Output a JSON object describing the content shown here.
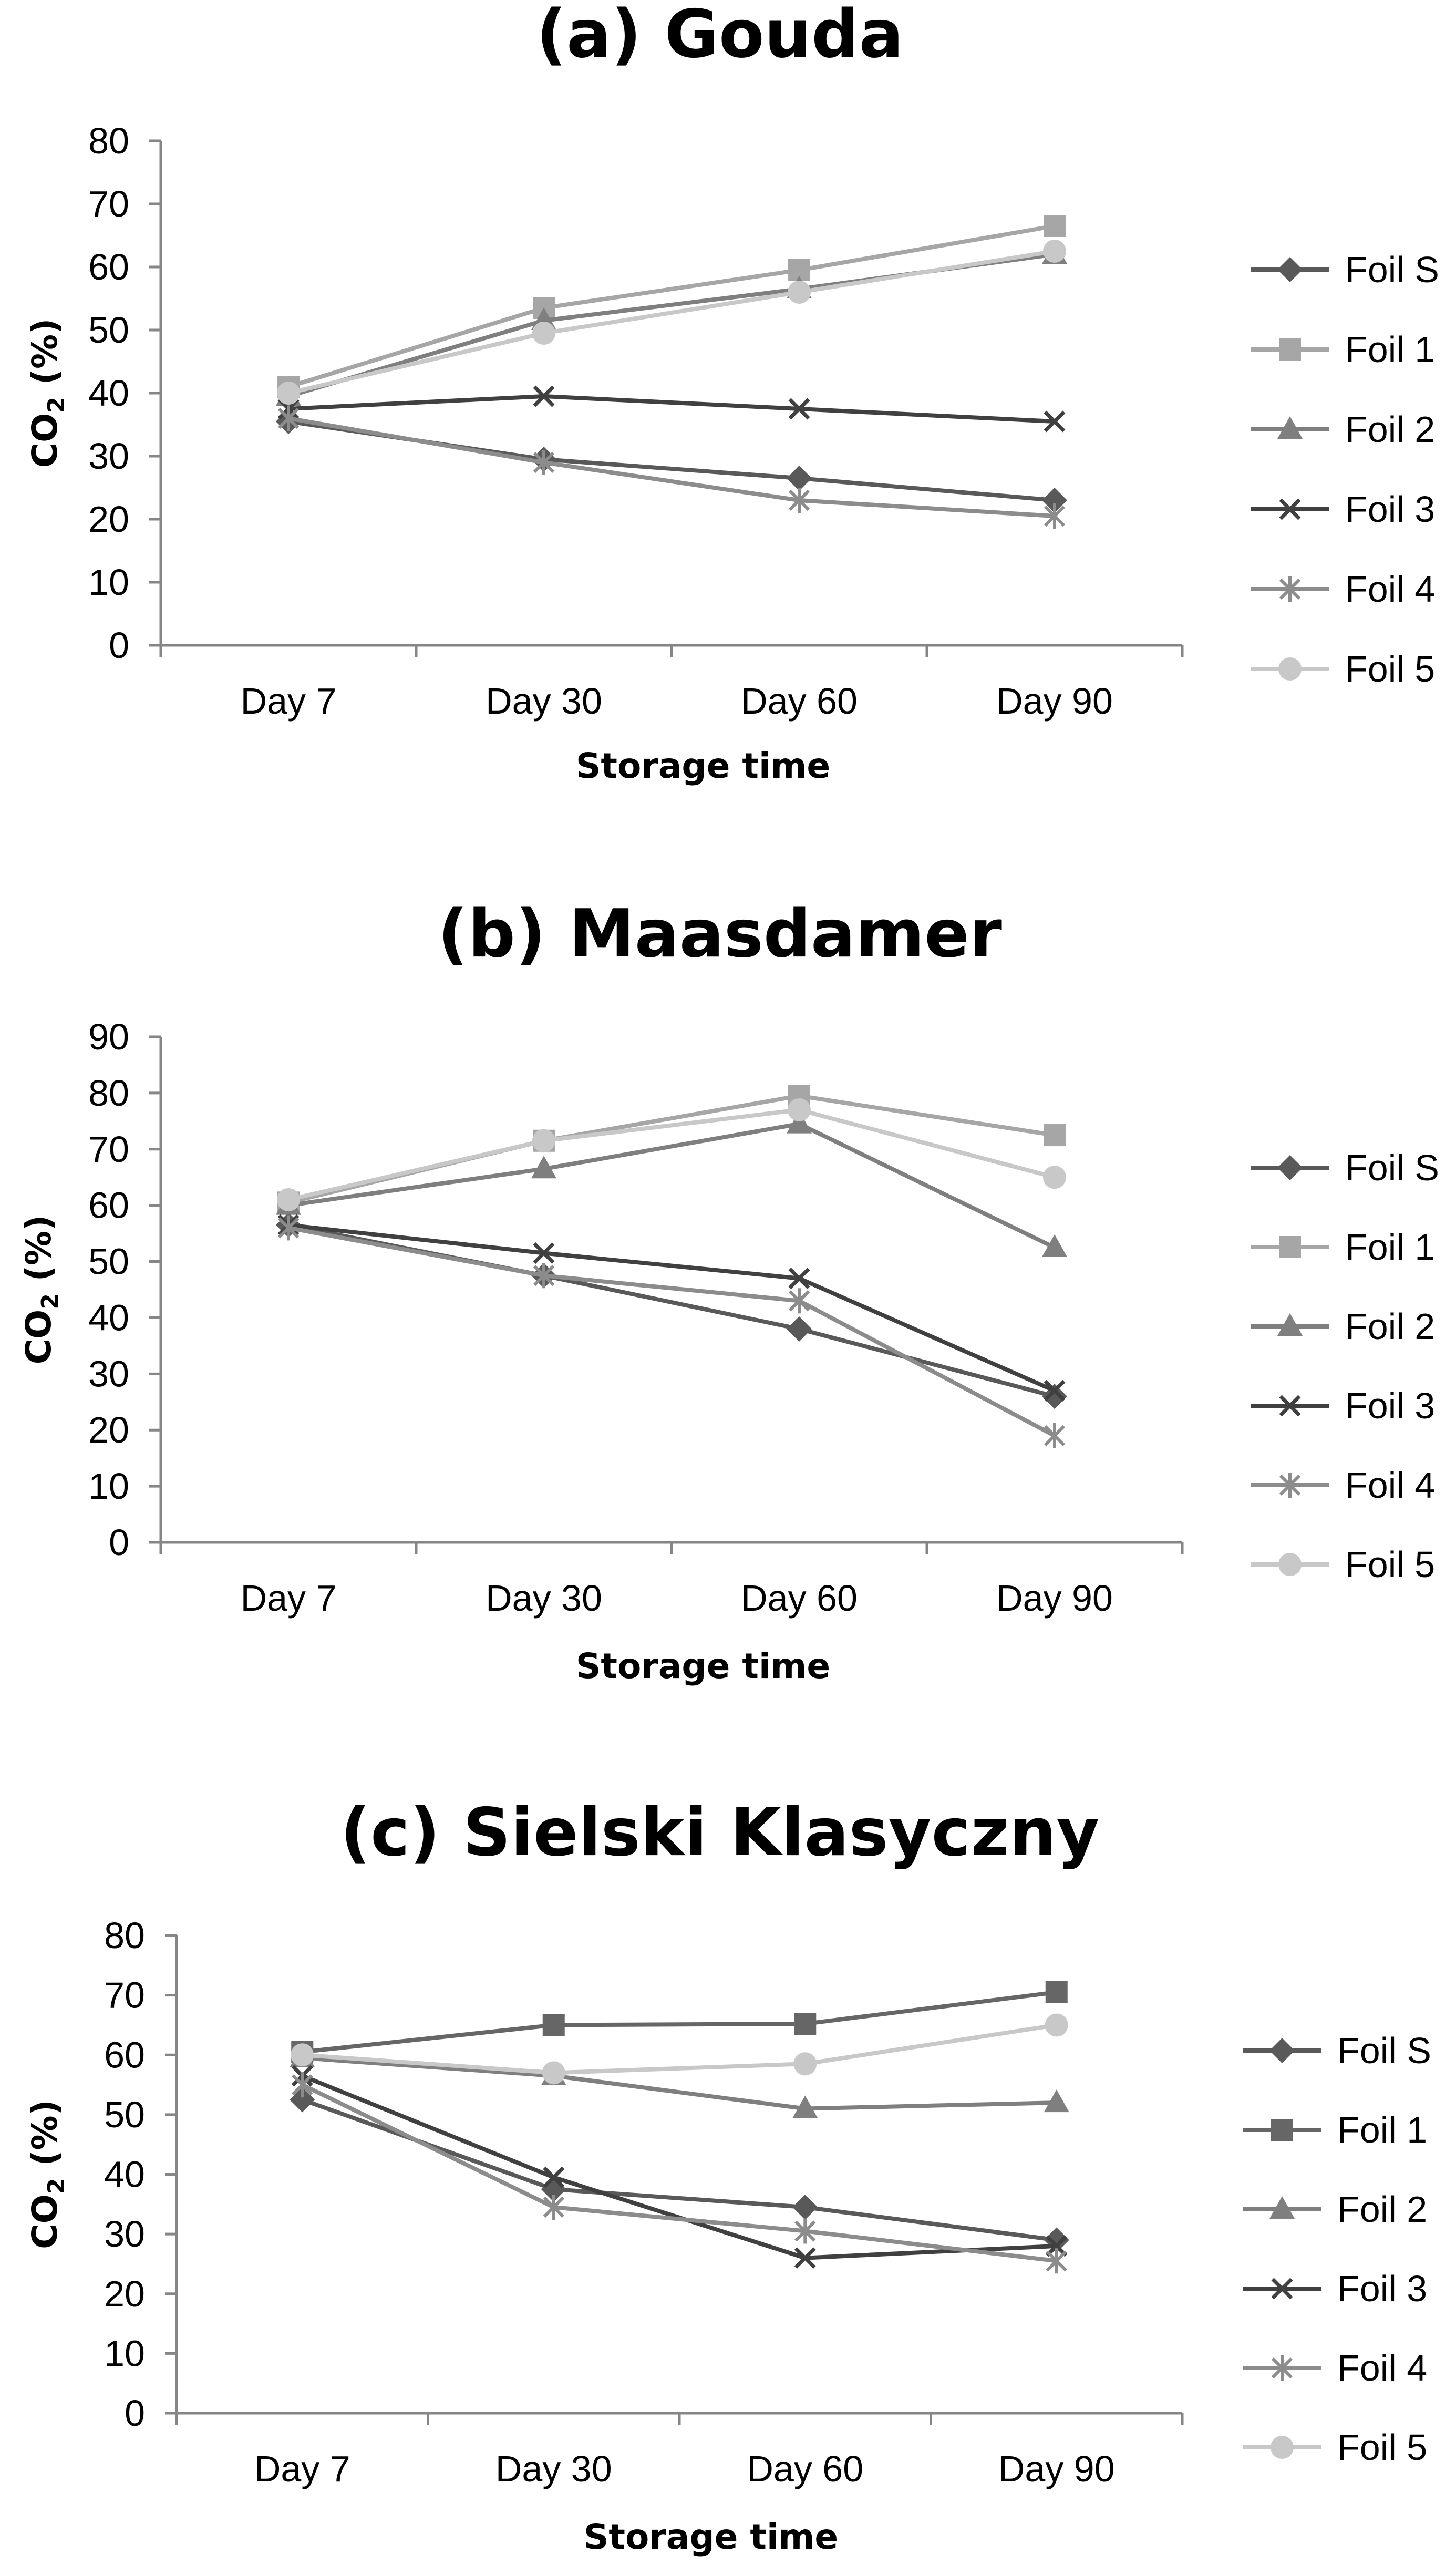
{
  "chart_data": [
    {
      "type": "line",
      "title": "(a) Gouda",
      "xlabel": "Storage time",
      "ylabel": "CO2 (%)",
      "ylim": [
        0,
        80
      ],
      "yticks": [
        "0",
        "10",
        "20",
        "30",
        "40",
        "50",
        "60",
        "70",
        "80"
      ],
      "categories": [
        "Day 7",
        "Day 30",
        "Day 60",
        "Day 90"
      ],
      "grid": false,
      "legend_position": "right",
      "series": [
        {
          "name": "Foil S",
          "color": "#595959",
          "marker": "diamond",
          "values": [
            35.5,
            29.5,
            26.5,
            23
          ]
        },
        {
          "name": "Foil 1",
          "color": "#a6a6a6",
          "marker": "square",
          "values": [
            41,
            53.5,
            59.5,
            66.5
          ]
        },
        {
          "name": "Foil 2",
          "color": "#7f7f7f",
          "marker": "triangle",
          "values": [
            39.5,
            51.5,
            56.5,
            62
          ]
        },
        {
          "name": "Foil 3",
          "color": "#404040",
          "marker": "x",
          "values": [
            37.5,
            39.5,
            37.5,
            35.5
          ]
        },
        {
          "name": "Foil 4",
          "color": "#8c8c8c",
          "marker": "star",
          "values": [
            36,
            29,
            23,
            20.5
          ]
        },
        {
          "name": "Foil 5",
          "color": "#c8c8c8",
          "marker": "circle",
          "values": [
            40,
            49.5,
            56,
            62.5
          ]
        }
      ]
    },
    {
      "type": "line",
      "title": "(b) Maasdamer",
      "xlabel": "Storage time",
      "ylabel": "CO2 (%)",
      "ylim": [
        0,
        90
      ],
      "yticks": [
        "0",
        "10",
        "20",
        "30",
        "40",
        "50",
        "60",
        "70",
        "80",
        "90"
      ],
      "categories": [
        "Day 7",
        "Day 30",
        "Day 60",
        "Day 90"
      ],
      "grid": false,
      "legend_position": "right",
      "series": [
        {
          "name": "Foil S",
          "color": "#595959",
          "marker": "diamond",
          "values": [
            56.5,
            47.5,
            38,
            26
          ]
        },
        {
          "name": "Foil 1",
          "color": "#a6a6a6",
          "marker": "square",
          "values": [
            60.5,
            71.5,
            79.5,
            72.5
          ]
        },
        {
          "name": "Foil 2",
          "color": "#7f7f7f",
          "marker": "triangle",
          "values": [
            60,
            66.5,
            74.5,
            52.5
          ]
        },
        {
          "name": "Foil 3",
          "color": "#404040",
          "marker": "x",
          "values": [
            56.5,
            51.5,
            47,
            27
          ]
        },
        {
          "name": "Foil 4",
          "color": "#8c8c8c",
          "marker": "star",
          "values": [
            56,
            47.5,
            43,
            19
          ]
        },
        {
          "name": "Foil 5",
          "color": "#c8c8c8",
          "marker": "circle",
          "values": [
            61,
            71.5,
            77,
            65
          ]
        }
      ]
    },
    {
      "type": "line",
      "title": "(c) Sielski Klasyczny",
      "xlabel": "Storage time",
      "ylabel": "CO2 (%)",
      "ylim": [
        0,
        80
      ],
      "yticks": [
        "0",
        "10",
        "20",
        "30",
        "40",
        "50",
        "60",
        "70",
        "80"
      ],
      "categories": [
        "Day 7",
        "Day 30",
        "Day 60",
        "Day 90"
      ],
      "grid": false,
      "legend_position": "right",
      "series": [
        {
          "name": "Foil S",
          "color": "#595959",
          "marker": "diamond",
          "values": [
            52.5,
            37.5,
            34.5,
            29
          ]
        },
        {
          "name": "Foil 1",
          "color": "#666666",
          "marker": "square",
          "values": [
            60.5,
            65,
            65.2,
            70.5
          ]
        },
        {
          "name": "Foil 2",
          "color": "#7f7f7f",
          "marker": "triangle",
          "values": [
            59.5,
            56.5,
            51,
            52
          ]
        },
        {
          "name": "Foil 3",
          "color": "#404040",
          "marker": "x",
          "values": [
            56.5,
            39.5,
            26,
            28
          ]
        },
        {
          "name": "Foil 4",
          "color": "#8c8c8c",
          "marker": "star",
          "values": [
            55,
            34.5,
            30.5,
            25.5
          ]
        },
        {
          "name": "Foil 5",
          "color": "#c8c8c8",
          "marker": "circle",
          "values": [
            60,
            57,
            58.5,
            65
          ]
        }
      ]
    }
  ]
}
